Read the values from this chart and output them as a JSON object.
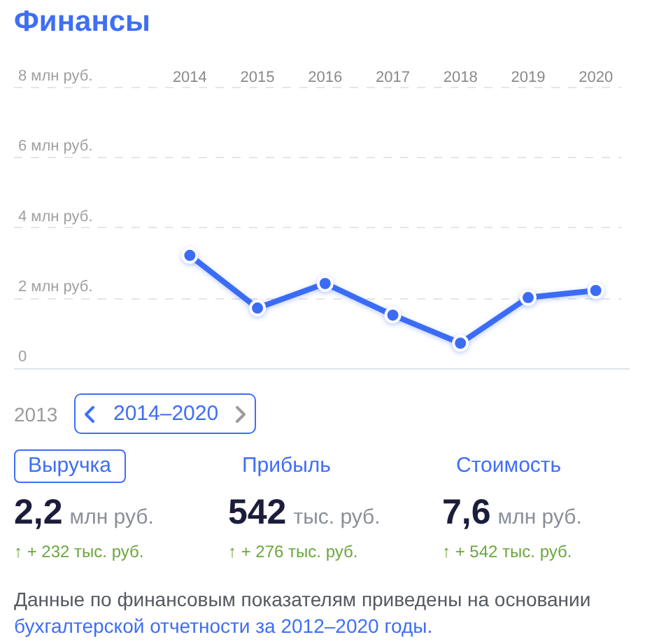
{
  "chart_data": [
    {
      "type": "line",
      "title": "Финансы",
      "categories": [
        "2014",
        "2015",
        "2016",
        "2017",
        "2018",
        "2019",
        "2020"
      ],
      "values": [
        3.2,
        1.7,
        2.4,
        1.5,
        0.7,
        2,
        2.2
      ],
      "color": "#3b6cf5",
      "ylim": [
        0,
        8
      ],
      "yticks": [
        0,
        {
          "value": 2,
          "label": "2 млн руб."
        },
        {
          "value": 4,
          "label": "4 млн руб."
        },
        {
          "value": 6,
          "label": "6 млн руб."
        },
        {
          "value": 8,
          "label": "8 млн руб."
        }
      ],
      "grid": "y",
      "marker": "circle",
      "annotations": [
        "2013",
        "2014–2020"
      ]
    },
    {
      "type": "other",
      "categories": [
        "Выручка",
        "Прибыль",
        "Стоимость"
      ],
      "annotations": [
        "2,2 млн руб.",
        "542 тыс. руб.",
        "7,6 млн руб.",
        "↑ + 232 тыс. руб.",
        "↑ + 276 тыс. руб.",
        "↑ + 542 тыс. руб.",
        "Данные по финансовым показателям приведены на основании",
        "бухгалтерской отчетности за 2012–2020 годы."
      ]
    }
  ]
}
